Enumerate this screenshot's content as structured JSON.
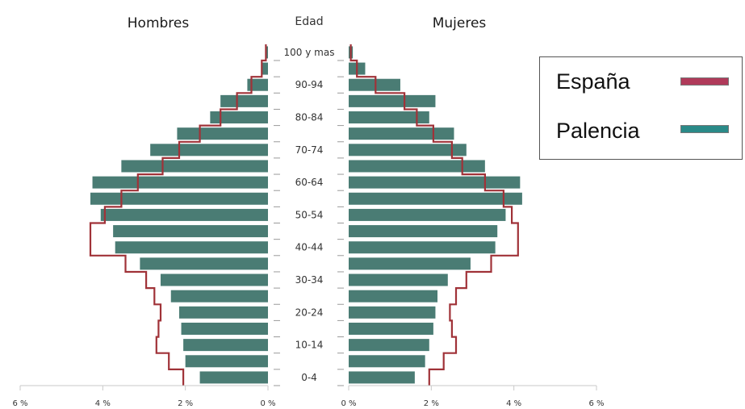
{
  "chart_data": {
    "type": "bar",
    "subtype": "population-pyramid",
    "headers": {
      "left": "Hombres",
      "center": "Edad",
      "right": "Mujeres"
    },
    "age_labels": [
      "0-4",
      "10-14",
      "20-24",
      "30-34",
      "40-44",
      "50-54",
      "60-64",
      "70-74",
      "80-84",
      "90-94",
      "100 y mas"
    ],
    "age_label_rows": [
      0,
      2,
      4,
      6,
      8,
      10,
      12,
      14,
      16,
      18,
      20
    ],
    "x_ticks": [
      "6 %",
      "4 %",
      "2 %",
      "0 %",
      "0 %",
      "2 %",
      "4 %",
      "6 %"
    ],
    "x_max": 6,
    "series": [
      {
        "name": "Palencia",
        "type": "bar",
        "color": "#4a7c74",
        "men": [
          1.65,
          2.0,
          2.05,
          2.1,
          2.15,
          2.35,
          2.6,
          3.1,
          3.7,
          3.75,
          4.05,
          4.3,
          4.25,
          3.55,
          2.85,
          2.2,
          1.4,
          1.15,
          0.5,
          0.15,
          0.05
        ],
        "women": [
          1.6,
          1.85,
          1.95,
          2.05,
          2.1,
          2.15,
          2.4,
          2.95,
          3.55,
          3.6,
          3.8,
          4.2,
          4.15,
          3.3,
          2.85,
          2.55,
          1.95,
          2.1,
          1.25,
          0.4,
          0.1
        ]
      },
      {
        "name": "España",
        "type": "line",
        "color": "#a03238",
        "men": [
          2.05,
          2.4,
          2.7,
          2.65,
          2.6,
          2.75,
          2.95,
          3.45,
          4.3,
          4.3,
          3.95,
          3.55,
          3.15,
          2.55,
          2.15,
          1.65,
          1.15,
          0.75,
          0.4,
          0.15,
          0.05
        ],
        "women": [
          1.95,
          2.3,
          2.6,
          2.5,
          2.45,
          2.6,
          2.85,
          3.45,
          4.1,
          4.1,
          3.95,
          3.75,
          3.3,
          2.75,
          2.5,
          2.05,
          1.65,
          1.35,
          0.65,
          0.2,
          0.05
        ]
      }
    ]
  },
  "legend": {
    "items": [
      {
        "label": "España",
        "color": "#b03a5a"
      },
      {
        "label": "Palencia",
        "color": "#2a8a88"
      }
    ]
  }
}
